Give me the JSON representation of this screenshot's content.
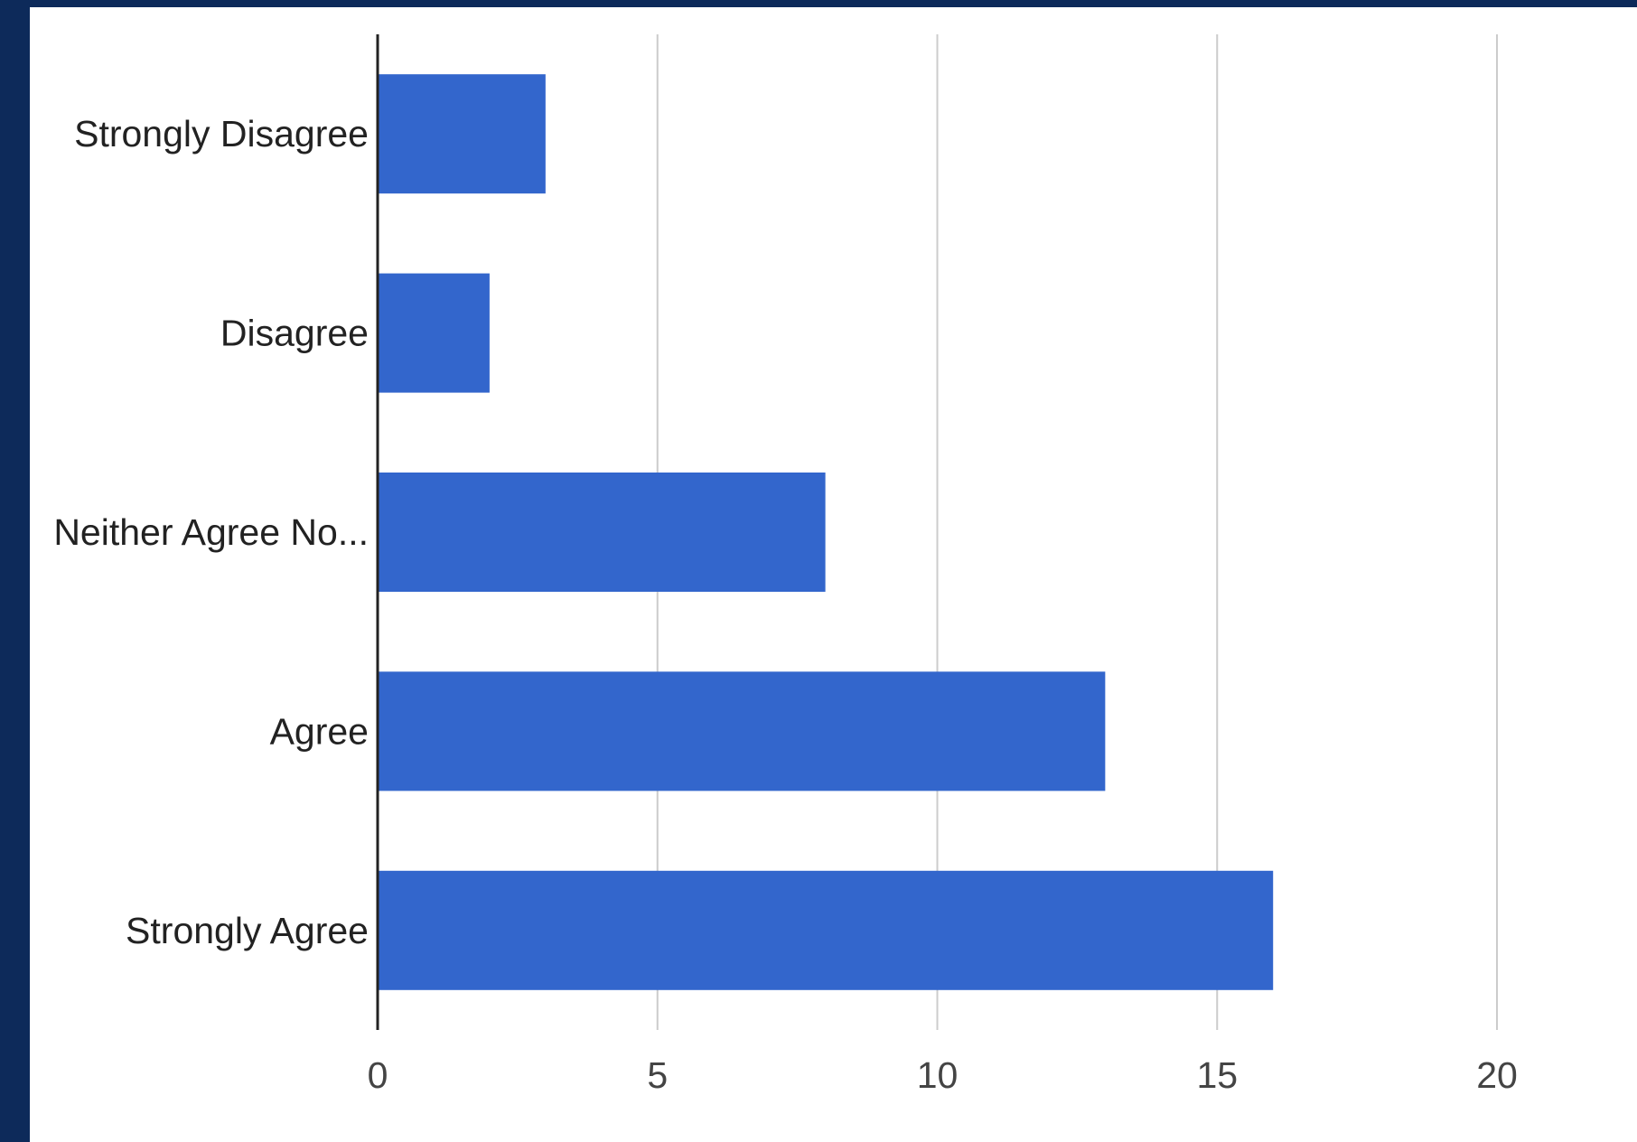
{
  "chart_data": {
    "type": "bar",
    "orientation": "horizontal",
    "categories": [
      "Strongly Disagree",
      "Disagree",
      "Neither Agree No...",
      "Agree",
      "Strongly Agree"
    ],
    "values": [
      3,
      2,
      8,
      13,
      16
    ],
    "xlim": [
      0,
      20
    ],
    "xticks": [
      "0",
      "5",
      "10",
      "15",
      "20"
    ],
    "title": "",
    "xlabel": "",
    "ylabel": "",
    "grid": "vertical",
    "legend": "none",
    "bar_color": "#3366cc",
    "grid_color": "#cccccc",
    "axis_color": "#222222"
  }
}
